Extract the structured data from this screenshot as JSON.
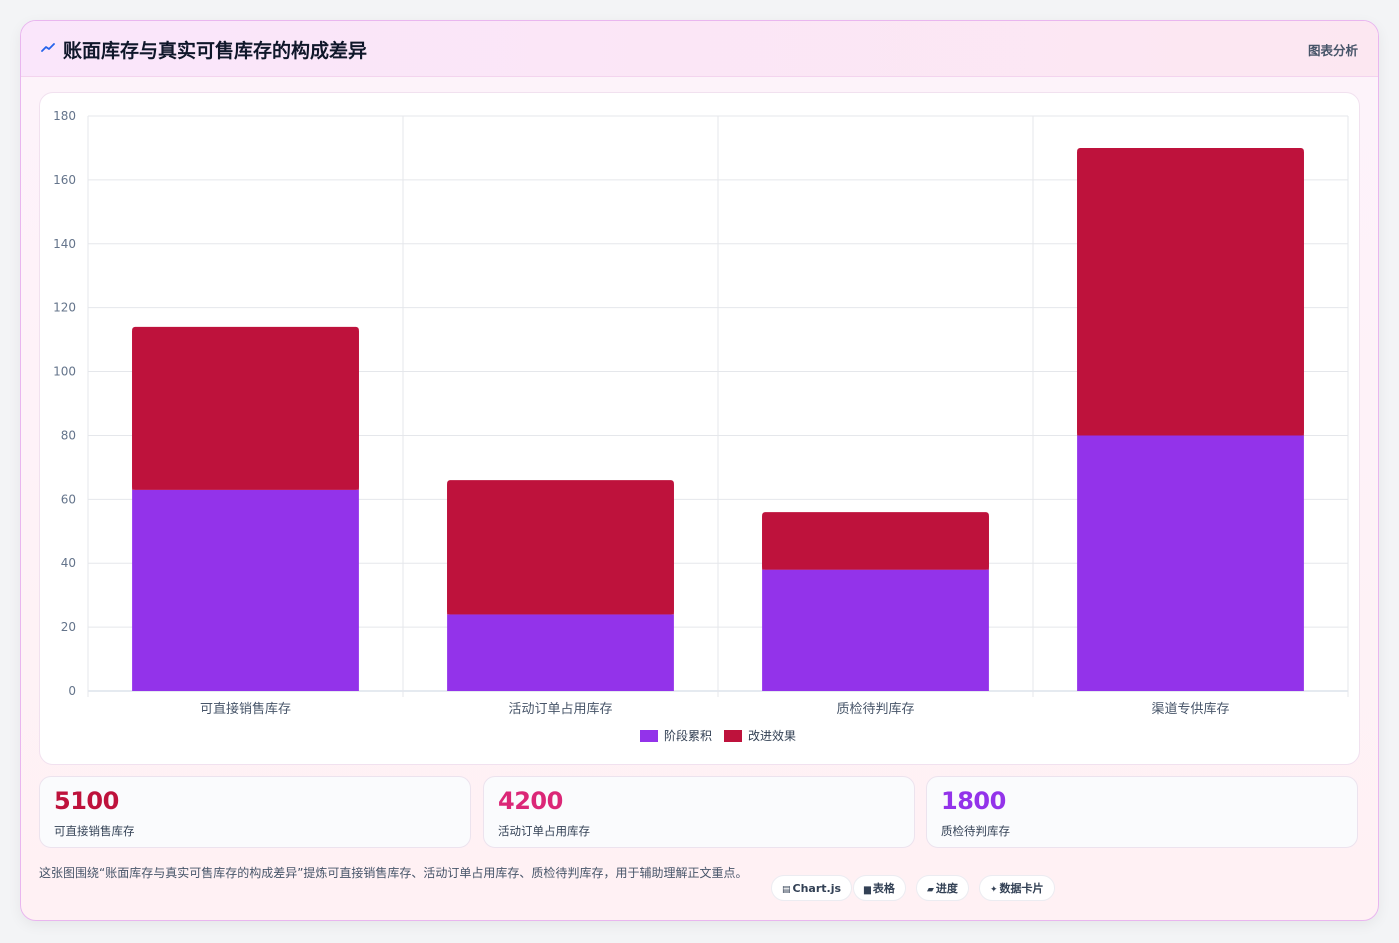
{
  "header": {
    "title": "账面库存与真实可售库存的构成差异",
    "title_icon": "trend-line-icon",
    "link_label": "图表分析"
  },
  "chart_data": {
    "type": "bar",
    "stacked": true,
    "categories": [
      "可直接销售库存",
      "活动订单占用库存",
      "质检待判库存",
      "渠道专供库存"
    ],
    "series": [
      {
        "name": "阶段累积",
        "values": [
          63,
          24,
          38,
          80
        ],
        "color": "#9333ea"
      },
      {
        "name": "改进效果",
        "values": [
          51,
          42,
          18,
          90
        ],
        "color": "#be123c"
      }
    ],
    "ylim": [
      0,
      180
    ],
    "yticks": [
      0,
      20,
      40,
      60,
      80,
      100,
      120,
      140,
      160,
      180
    ],
    "grid": true,
    "legend": "bottom"
  },
  "stats": [
    {
      "value": "5100",
      "label": "可直接销售库存",
      "color": "#be123c"
    },
    {
      "value": "4200",
      "label": "活动订单占用库存",
      "color": "#db2777"
    },
    {
      "value": "1800",
      "label": "质检待判库存",
      "color": "#9333ea"
    }
  ],
  "footer": {
    "text": "这张图围绕“账面库存与真实可售库存的构成差异”提炼可直接销售库存、活动订单占用库存、质检待判库存，用于辅助理解正文重点。",
    "tags": [
      {
        "icon": "chart-icon",
        "glyph": "▤",
        "label": "Chart.js"
      },
      {
        "icon": "table-icon",
        "glyph": "▆",
        "label": "表格"
      },
      {
        "icon": "progress-icon",
        "glyph": "▰",
        "label": "进度"
      },
      {
        "icon": "sparkle-icon",
        "glyph": "✦",
        "label": "数据卡片"
      }
    ]
  }
}
